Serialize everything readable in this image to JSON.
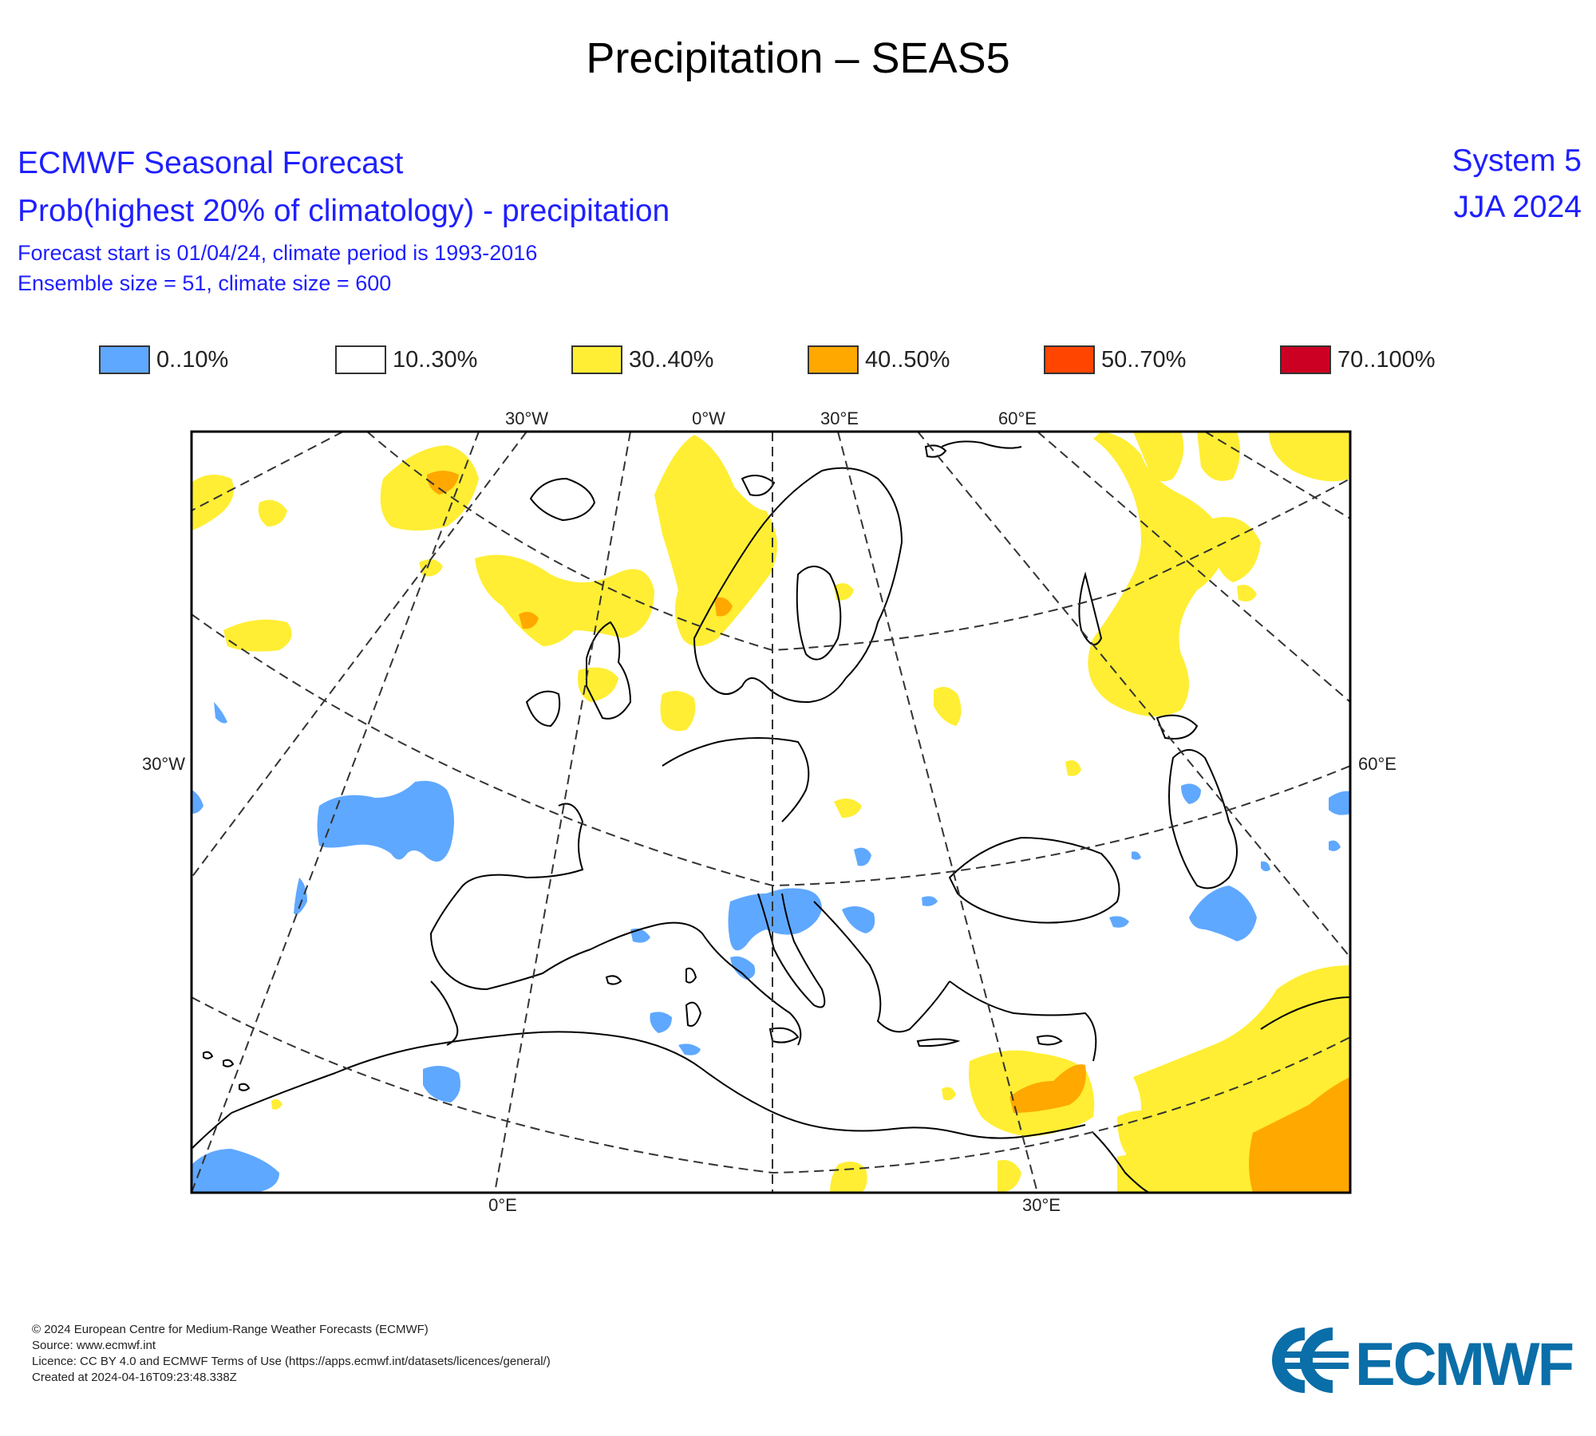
{
  "title": "Precipitation – SEAS5",
  "header": {
    "line1": "ECMWF Seasonal Forecast",
    "line2": "Prob(highest 20% of climatology) - precipitation",
    "line3": "Forecast start is 01/04/24, climate period is 1993-2016",
    "line4": "Ensemble size = 51, climate size = 600",
    "system": "System 5",
    "season": "JJA 2024"
  },
  "legend": [
    {
      "label": "0..10%",
      "color": "#5fa8ff"
    },
    {
      "label": "10..30%",
      "color": "#ffffff"
    },
    {
      "label": "30..40%",
      "color": "#ffee33"
    },
    {
      "label": "40..50%",
      "color": "#ffa800"
    },
    {
      "label": "50..70%",
      "color": "#ff4500"
    },
    {
      "label": "70..100%",
      "color": "#cc0022"
    }
  ],
  "axis_labels": {
    "top": [
      "30°W",
      "0°W",
      "30°E",
      "60°E"
    ],
    "left": "30°W",
    "right": "60°E",
    "bottom": [
      "0°E",
      "30°E"
    ]
  },
  "footer": {
    "copyright": "© 2024 European Centre for Medium-Range Weather Forecasts (ECMWF)",
    "source": "Source: www.ecmwf.int",
    "licence": "Licence: CC BY 4.0 and ECMWF Terms of Use (https://apps.ecmwf.int/datasets/licences/general/)",
    "created": "Created at 2024-04-16T09:23:48.338Z",
    "logo_text": "ECMWF"
  },
  "colors": {
    "header_text": "#1f1fff",
    "logo": "#0a6ea8",
    "low_precip": "#5fa8ff",
    "high_precip_30_40": "#ffee33",
    "high_precip_40_50": "#ffa800"
  }
}
